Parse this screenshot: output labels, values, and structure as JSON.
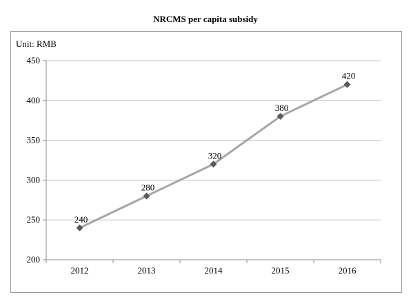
{
  "chart_data": {
    "type": "line",
    "title": "NRCMS per capita subsidy",
    "unit_label": "Unit: RMB",
    "xlabel": "",
    "ylabel": "",
    "categories": [
      "2012",
      "2013",
      "2014",
      "2015",
      "2016"
    ],
    "series": [
      {
        "values": [
          240,
          280,
          320,
          380,
          420
        ]
      }
    ],
    "ylim": [
      200,
      450
    ],
    "yticks": [
      200,
      250,
      300,
      350,
      400,
      450
    ],
    "grid": true,
    "legend": "none",
    "data_labels": true,
    "colors": {
      "line": "#a6a6a6",
      "marker": "#595959",
      "grid": "#c0c0c0",
      "axis": "#888888"
    }
  }
}
